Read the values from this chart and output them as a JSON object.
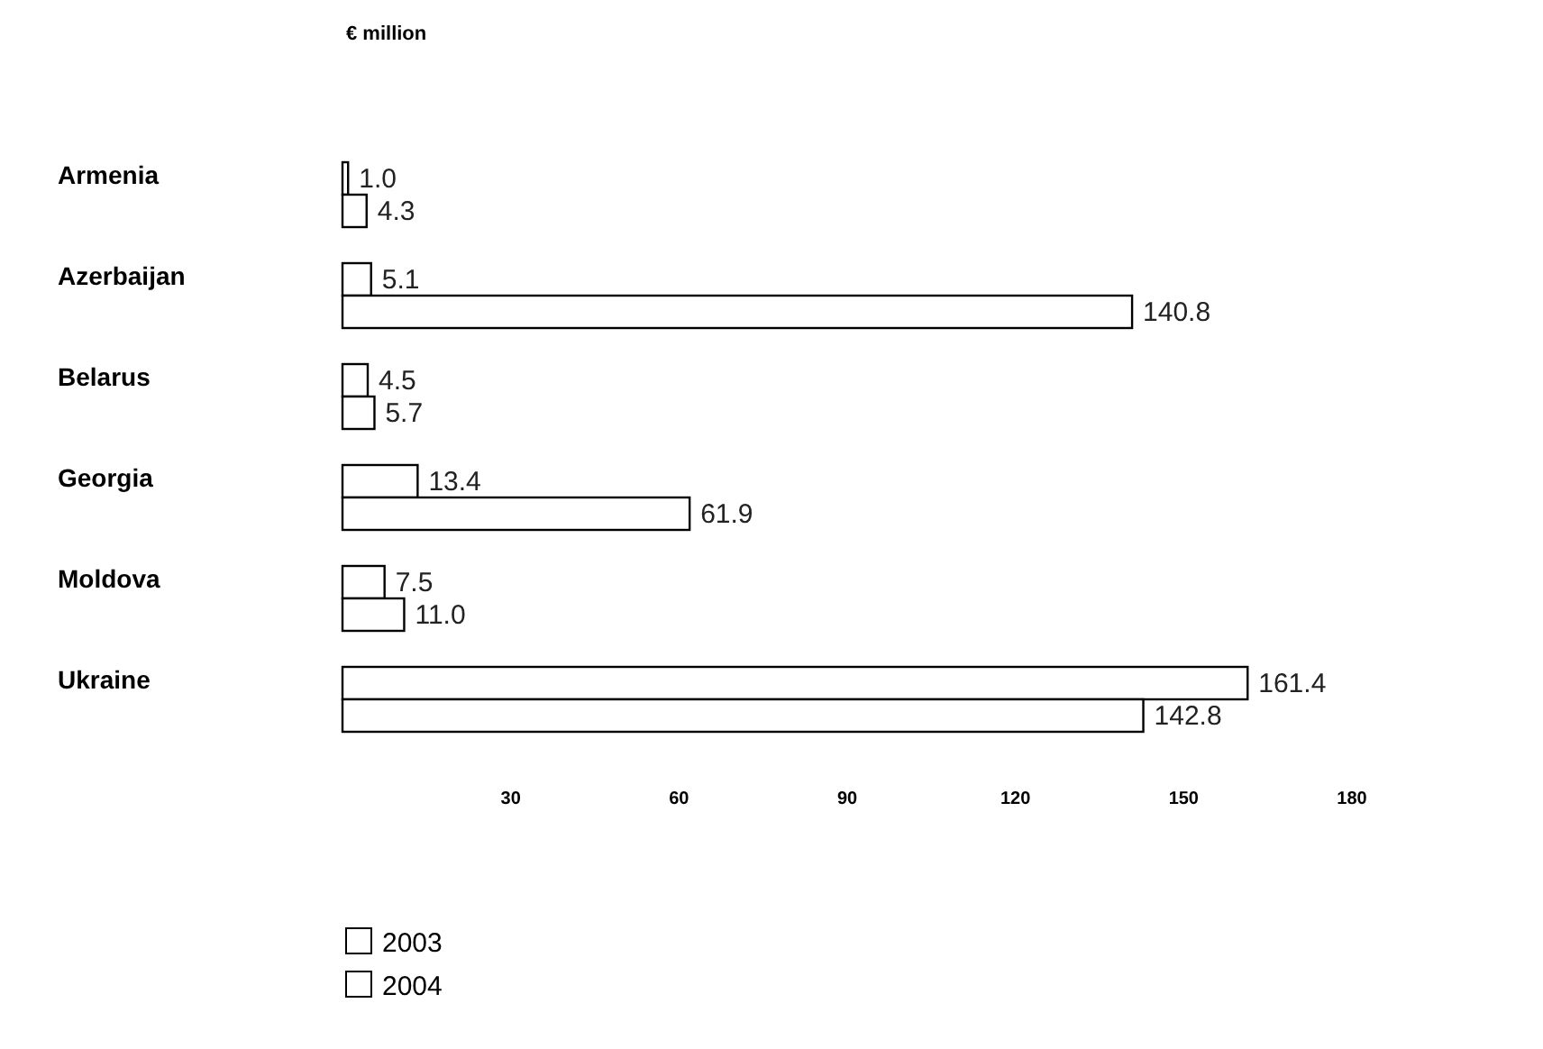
{
  "chart_data": {
    "type": "bar",
    "orientation": "horizontal",
    "xlabel": "€ million",
    "categories": [
      "Armenia",
      "Azerbaijan",
      "Belarus",
      "Georgia",
      "Moldova",
      "Ukraine"
    ],
    "series": [
      {
        "name": "2003",
        "color": "#ffffff",
        "values": [
          1.0,
          5.1,
          4.5,
          13.4,
          7.5,
          161.4
        ],
        "value_labels": [
          "1.0",
          "5.1",
          "4.5",
          "13.4",
          "7.5",
          "161.4"
        ]
      },
      {
        "name": "2004",
        "color": "#ffffff",
        "values": [
          4.3,
          140.8,
          5.7,
          61.9,
          11.0,
          142.8
        ],
        "value_labels": [
          "4.3",
          "140.8",
          "5.7",
          "61.9",
          "11.0",
          "142.8"
        ]
      }
    ],
    "xlim": [
      0,
      180
    ],
    "xticks": [
      30,
      60,
      90,
      120,
      150,
      180
    ],
    "grid": false,
    "legend": "bottom left"
  }
}
